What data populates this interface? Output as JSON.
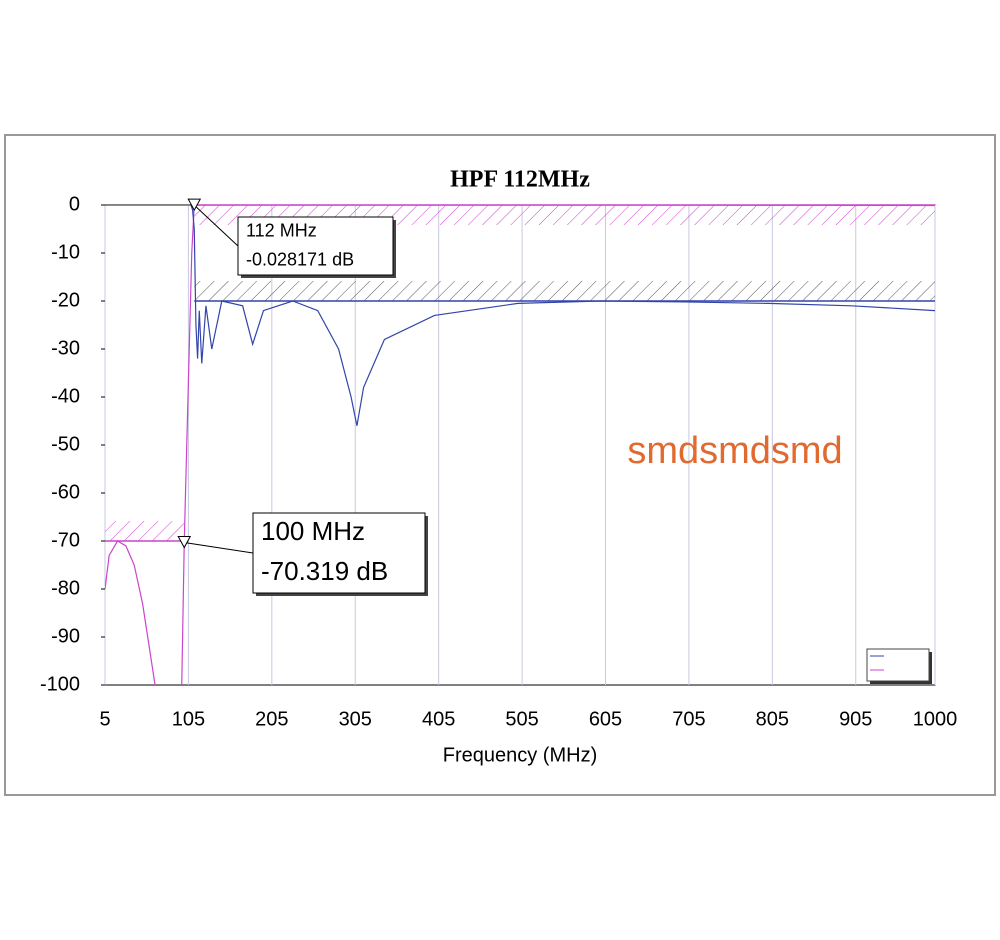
{
  "chart_data": {
    "type": "line",
    "title": "HPF 112MHz",
    "x_label": "Frequency (MHz)",
    "xlim": [
      5,
      1000
    ],
    "ylim": [
      -100,
      0
    ],
    "xticks": [
      5,
      105,
      205,
      305,
      405,
      505,
      605,
      705,
      805,
      905,
      1000
    ],
    "yticks": [
      0,
      -10,
      -20,
      -30,
      -40,
      -50,
      -60,
      -70,
      -80,
      -90,
      -100
    ],
    "grid": "x",
    "series": [
      {
        "color": "#cc44cc",
        "x": [
          5,
          10,
          20,
          30,
          40,
          50,
          58,
          65,
          70,
          93,
          97,
          100,
          103,
          106,
          109,
          112,
          120,
          200,
          400,
          600,
          800,
          1000
        ],
        "values": [
          -80,
          -73,
          -70,
          -71,
          -75,
          -83,
          -92,
          -100,
          -110,
          null,
          -100,
          -70.319,
          -50,
          -30,
          -10,
          -0.028171,
          0,
          0,
          0,
          0,
          -0.05,
          -0.1
        ]
      },
      {
        "color": "#3344aa",
        "x": [
          5,
          50,
          108,
          110,
          112,
          114,
          116,
          118,
          121,
          126,
          133,
          145,
          170,
          182,
          195,
          230,
          260,
          285,
          300,
          307,
          315,
          340,
          400,
          500,
          600,
          700,
          800,
          900,
          1000
        ],
        "values": [
          0,
          0,
          0,
          -1,
          -5,
          -25,
          -32,
          -22,
          -33,
          -21,
          -30,
          -20,
          -21,
          -29,
          -22,
          -20,
          -22,
          -30,
          -40,
          -46,
          -38,
          -28,
          -23,
          -20.5,
          -20,
          -20.2,
          -20.5,
          -21,
          -22
        ]
      }
    ],
    "masks": [
      {
        "color": "#cc44cc",
        "x": [
          112,
          1000
        ],
        "y": 0,
        "side": "below"
      },
      {
        "color": "#3344aa",
        "x": [
          112,
          1000
        ],
        "y": -20,
        "side": "above"
      },
      {
        "color": "#cc44cc",
        "x": [
          5,
          100
        ],
        "y": -70,
        "side": "above"
      }
    ],
    "annotations": [
      {
        "x": 112,
        "y": -0.028171,
        "lines": [
          "112 MHz",
          "-0.028171 dB"
        ]
      },
      {
        "x": 100,
        "y": -70.319,
        "lines": [
          "100 MHz",
          "-70.319 dB"
        ]
      }
    ],
    "watermark": "smdsmdsmd"
  }
}
